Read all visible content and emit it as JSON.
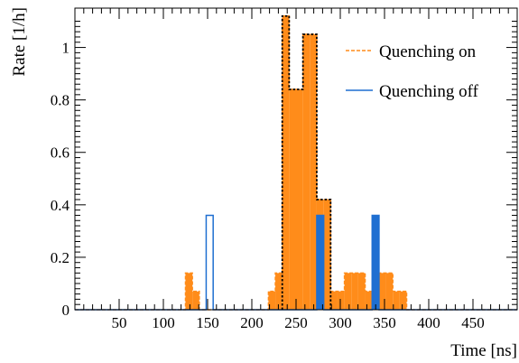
{
  "chart_data": {
    "type": "histogram",
    "xlabel": "Time [ns]",
    "ylabel": "Rate [1/h]",
    "xlim": [
      0,
      500
    ],
    "ylim": [
      0,
      1.15
    ],
    "x_ticks": [
      50,
      100,
      150,
      200,
      250,
      300,
      350,
      400,
      450
    ],
    "y_ticks": [
      0,
      0.2,
      0.4,
      0.6,
      0.8,
      1
    ],
    "y_tick_labels": [
      "0",
      "0.2",
      "0.4",
      "0.6",
      "0.8",
      "1"
    ],
    "bin_width": 7.8125,
    "grid": false,
    "legend_position": "top-right",
    "series": [
      {
        "name": "Quenching on",
        "style": "dashed-filled",
        "color": "#ff8c1a",
        "fill": "#ff8c1a",
        "bins": [
          {
            "x0": 0,
            "x1": 125,
            "y": 0
          },
          {
            "x0": 125,
            "x1": 132.8,
            "y": 0.14
          },
          {
            "x0": 132.8,
            "x1": 140.6,
            "y": 0.07
          },
          {
            "x0": 140.6,
            "x1": 218.8,
            "y": 0
          },
          {
            "x0": 218.8,
            "x1": 226.6,
            "y": 0.07
          },
          {
            "x0": 226.6,
            "x1": 234.4,
            "y": 0.14
          },
          {
            "x0": 234.4,
            "x1": 242.2,
            "y": 1.12
          },
          {
            "x0": 242.2,
            "x1": 250,
            "y": 0.84
          },
          {
            "x0": 250,
            "x1": 257.8,
            "y": 0.84
          },
          {
            "x0": 257.8,
            "x1": 265.6,
            "y": 1.05
          },
          {
            "x0": 265.6,
            "x1": 273.4,
            "y": 1.05
          },
          {
            "x0": 273.4,
            "x1": 281.3,
            "y": 0.42
          },
          {
            "x0": 281.3,
            "x1": 289.1,
            "y": 0.42
          },
          {
            "x0": 289.1,
            "x1": 296.9,
            "y": 0.07
          },
          {
            "x0": 296.9,
            "x1": 304.7,
            "y": 0.07
          },
          {
            "x0": 304.7,
            "x1": 312.5,
            "y": 0.14
          },
          {
            "x0": 312.5,
            "x1": 320.3,
            "y": 0.14
          },
          {
            "x0": 320.3,
            "x1": 328.1,
            "y": 0.14
          },
          {
            "x0": 328.1,
            "x1": 335.9,
            "y": 0.07
          },
          {
            "x0": 335.9,
            "x1": 343.8,
            "y": 0.07
          },
          {
            "x0": 343.8,
            "x1": 351.6,
            "y": 0.14
          },
          {
            "x0": 351.6,
            "x1": 359.4,
            "y": 0.14
          },
          {
            "x0": 359.4,
            "x1": 367.2,
            "y": 0.07
          },
          {
            "x0": 367.2,
            "x1": 375,
            "y": 0.07
          },
          {
            "x0": 375,
            "x1": 500,
            "y": 0
          }
        ]
      },
      {
        "name": "Quenching off",
        "style": "solid-step",
        "color": "#1f6fd1",
        "fill": "#1f6fd1",
        "bins": [
          {
            "x0": 0,
            "x1": 148.4,
            "y": 0
          },
          {
            "x0": 148.4,
            "x1": 156.3,
            "y": 0.36
          },
          {
            "x0": 156.3,
            "x1": 273.4,
            "y": 0
          },
          {
            "x0": 273.4,
            "x1": 281.3,
            "y": 0.36
          },
          {
            "x0": 281.3,
            "x1": 336,
            "y": 0
          },
          {
            "x0": 336,
            "x1": 343.8,
            "y": 0.36
          },
          {
            "x0": 343.8,
            "x1": 500,
            "y": 0
          }
        ]
      }
    ]
  }
}
